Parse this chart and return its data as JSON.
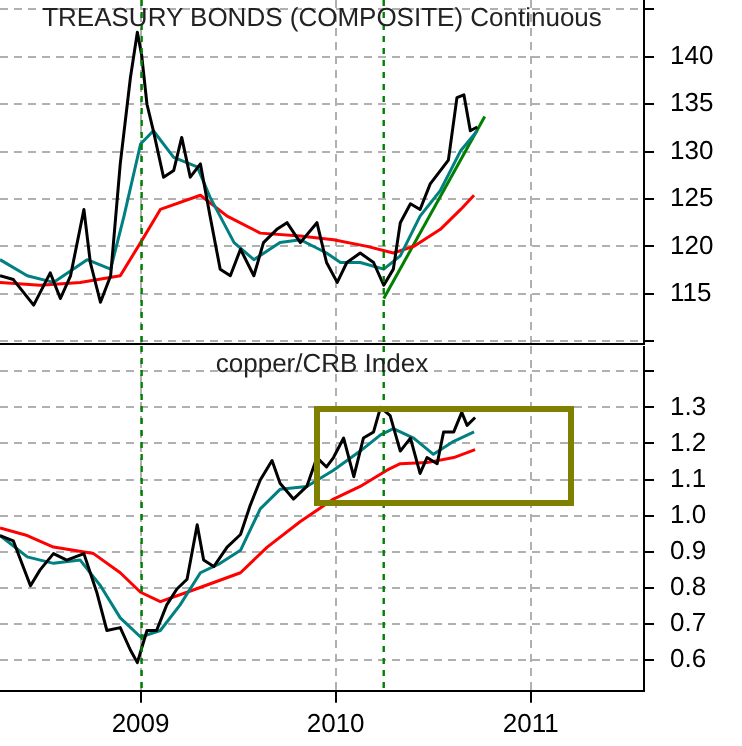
{
  "chart_data": [
    {
      "type": "line",
      "title": "TREASURY BONDS (COMPOSITE) Continuous",
      "marker": "none",
      "grid": true,
      "legend": false,
      "tick_labels": "y",
      "xlim": [
        "2008-04-13",
        "2011-08-01"
      ],
      "xticks": [
        {
          "value": "2009-01-01",
          "label": null
        },
        {
          "value": "2010-01-01",
          "label": null
        },
        {
          "value": "2011-01-01",
          "label": null
        }
      ],
      "ylim": [
        109.7,
        146
      ],
      "yticks": [
        {
          "value": 110,
          "label": null
        },
        115,
        120,
        125,
        130,
        135,
        140,
        {
          "value": 145,
          "label": null
        }
      ],
      "ref_lines": [
        {
          "axis": "x",
          "value": "2009-01-03",
          "color": "#008000",
          "line_style": "dashed"
        },
        {
          "axis": "x",
          "value": "2010-04-01",
          "color": "#008000",
          "line_style": "dashed"
        }
      ],
      "series": [
        {
          "color": "#000000",
          "x": [
            "2008-04-13",
            "2008-05-08",
            "2008-06-15",
            "2008-07-16",
            "2008-08-04",
            "2008-08-23",
            "2008-09-17",
            "2008-09-29",
            "2008-10-18",
            "2008-11-06",
            "2008-11-24",
            "2008-12-13",
            "2008-12-26",
            "2009-01-03",
            "2009-01-13",
            "2009-01-25",
            "2009-02-13",
            "2009-03-04",
            "2009-03-19",
            "2009-04-04",
            "2009-04-23",
            "2009-05-11",
            "2009-05-30",
            "2009-06-18",
            "2009-07-07",
            "2009-08-01",
            "2009-08-19",
            "2009-09-13",
            "2009-10-02",
            "2009-10-27",
            "2009-11-27",
            "2009-12-15",
            "2010-01-04",
            "2010-01-22",
            "2010-02-16",
            "2010-03-13",
            "2010-04-01",
            "2010-04-19",
            "2010-05-02",
            "2010-05-21",
            "2010-06-08",
            "2010-06-27",
            "2010-07-16",
            "2010-07-31",
            "2010-08-16",
            "2010-08-29",
            "2010-09-10",
            "2010-09-23"
          ],
          "values": [
            116.9,
            116.5,
            113.8,
            117.2,
            114.5,
            116.9,
            123.9,
            118.3,
            114.1,
            116.9,
            128.7,
            137.8,
            142.6,
            140.2,
            135.0,
            132.2,
            127.3,
            128.0,
            131.5,
            127.3,
            128.7,
            123.2,
            117.6,
            116.9,
            119.7,
            116.9,
            120.4,
            121.8,
            122.5,
            120.4,
            122.5,
            118.3,
            116.2,
            118.3,
            119.3,
            118.3,
            115.9,
            117.6,
            122.5,
            124.5,
            123.9,
            126.6,
            128.0,
            129.1,
            135.7,
            136.0,
            132.2,
            132.6
          ]
        },
        {
          "color": "#008080",
          "x": [
            "2008-04-13",
            "2008-06-03",
            "2008-07-22",
            "2008-09-23",
            "2008-11-06",
            "2008-12-01",
            "2009-01-01",
            "2009-01-25",
            "2009-03-04",
            "2009-04-17",
            "2009-05-11",
            "2009-06-25",
            "2009-08-01",
            "2009-09-19",
            "2009-10-27",
            "2009-12-15",
            "2010-01-10",
            "2010-02-16",
            "2010-04-01",
            "2010-05-02",
            "2010-06-08",
            "2010-07-16",
            "2010-08-23",
            "2010-09-23"
          ],
          "values": [
            118.6,
            116.9,
            116.2,
            118.6,
            117.6,
            123.2,
            130.8,
            132.2,
            129.4,
            128.4,
            125.2,
            120.4,
            118.6,
            120.4,
            120.7,
            119.3,
            118.3,
            118.3,
            117.6,
            119.0,
            123.2,
            125.9,
            130.1,
            132.2
          ]
        },
        {
          "color": "#ff0000",
          "x": [
            "2008-04-13",
            "2008-06-27",
            "2008-09-10",
            "2008-11-24",
            "2009-01-01",
            "2009-02-07",
            "2009-04-23",
            "2009-06-12",
            "2009-08-13",
            "2009-10-27",
            "2009-12-28",
            "2010-03-01",
            "2010-04-19",
            "2010-05-27",
            "2010-07-16",
            "2010-08-23",
            "2010-09-17"
          ],
          "values": [
            116.2,
            115.9,
            116.2,
            116.9,
            120.4,
            123.9,
            125.4,
            123.2,
            121.4,
            121.1,
            120.7,
            120.0,
            119.3,
            120.0,
            121.8,
            123.9,
            125.4
          ]
        },
        {
          "color": "#008000",
          "x": [
            "2010-04-01",
            "2010-10-07"
          ],
          "values": [
            114.5,
            133.7
          ]
        }
      ]
    },
    {
      "type": "line",
      "title": "copper/CRB Index",
      "marker": "none",
      "grid": true,
      "legend": false,
      "xlim": [
        "2008-04-13",
        "2011-08-01"
      ],
      "xticks": [
        {
          "value": "2009-01-01",
          "label": "2009"
        },
        {
          "value": "2010-01-01",
          "label": "2010"
        },
        {
          "value": "2011-01-01",
          "label": "2011"
        }
      ],
      "ylim": [
        0.515,
        1.47
      ],
      "yticks": [
        0.6,
        0.7,
        0.8,
        0.9,
        {
          "value": 1.0,
          "label": "1.0"
        },
        1.1,
        1.2,
        1.3,
        {
          "value": 1.4,
          "label": null
        }
      ],
      "ref_lines": [
        {
          "axis": "x",
          "value": "2009-01-03",
          "color": "#008000",
          "line_style": "dashed"
        },
        {
          "axis": "x",
          "value": "2010-04-01",
          "color": "#008000",
          "line_style": "dashed"
        }
      ],
      "series": [
        {
          "color": "#000000",
          "x": [
            "2008-04-13",
            "2008-05-08",
            "2008-06-09",
            "2008-06-27",
            "2008-07-22",
            "2008-08-16",
            "2008-09-17",
            "2008-10-11",
            "2008-10-30",
            "2008-11-24",
            "2008-12-13",
            "2008-12-26",
            "2009-01-13",
            "2009-01-31",
            "2009-02-19",
            "2009-03-10",
            "2009-03-29",
            "2009-04-17",
            "2009-04-29",
            "2009-05-18",
            "2009-06-12",
            "2009-07-07",
            "2009-07-25",
            "2009-08-13",
            "2009-09-04",
            "2009-09-19",
            "2009-10-14",
            "2009-11-08",
            "2009-11-27",
            "2009-12-15",
            "2009-12-28",
            "2010-01-16",
            "2010-02-04",
            "2010-02-22",
            "2010-03-13",
            "2010-03-26",
            "2010-04-13",
            "2010-05-02",
            "2010-05-21",
            "2010-06-08",
            "2010-06-21",
            "2010-07-10",
            "2010-07-22",
            "2010-08-10",
            "2010-08-25",
            "2010-09-04",
            "2010-09-19"
          ],
          "values": [
            0.945,
            0.93,
            0.806,
            0.85,
            0.895,
            0.877,
            0.895,
            0.788,
            0.682,
            0.69,
            0.628,
            0.593,
            0.682,
            0.682,
            0.753,
            0.797,
            0.824,
            0.975,
            0.877,
            0.859,
            0.913,
            0.948,
            1.028,
            1.099,
            1.153,
            1.09,
            1.046,
            1.081,
            1.161,
            1.135,
            1.161,
            1.215,
            1.108,
            1.215,
            1.232,
            1.3,
            1.277,
            1.179,
            1.215,
            1.117,
            1.161,
            1.144,
            1.232,
            1.232,
            1.286,
            1.25,
            1.272
          ]
        },
        {
          "color": "#008080",
          "x": [
            "2008-04-13",
            "2008-06-03",
            "2008-07-22",
            "2008-09-10",
            "2008-10-18",
            "2008-11-24",
            "2009-01-01",
            "2009-02-07",
            "2009-03-16",
            "2009-04-23",
            "2009-05-30",
            "2009-07-07",
            "2009-08-13",
            "2009-09-19",
            "2009-11-08",
            "2009-12-28",
            "2010-02-16",
            "2010-03-26",
            "2010-04-19",
            "2010-05-27",
            "2010-07-03",
            "2010-08-10",
            "2010-09-17"
          ],
          "values": [
            0.945,
            0.886,
            0.868,
            0.877,
            0.806,
            0.717,
            0.664,
            0.682,
            0.753,
            0.842,
            0.868,
            0.904,
            1.019,
            1.073,
            1.081,
            1.126,
            1.179,
            1.224,
            1.241,
            1.215,
            1.17,
            1.206,
            1.232
          ]
        },
        {
          "color": "#ff0000",
          "x": [
            "2008-04-13",
            "2008-06-03",
            "2008-07-22",
            "2008-10-05",
            "2008-11-24",
            "2009-01-01",
            "2009-02-07",
            "2009-03-29",
            "2009-05-18",
            "2009-07-07",
            "2009-08-26",
            "2009-10-27",
            "2009-12-28",
            "2010-02-16",
            "2010-04-07",
            "2010-05-02",
            "2010-06-21",
            "2010-08-10",
            "2010-09-19"
          ],
          "values": [
            0.966,
            0.945,
            0.913,
            0.895,
            0.842,
            0.788,
            0.762,
            0.788,
            0.815,
            0.842,
            0.913,
            0.984,
            1.046,
            1.081,
            1.126,
            1.144,
            1.147,
            1.161,
            1.183
          ]
        }
      ]
    }
  ]
}
